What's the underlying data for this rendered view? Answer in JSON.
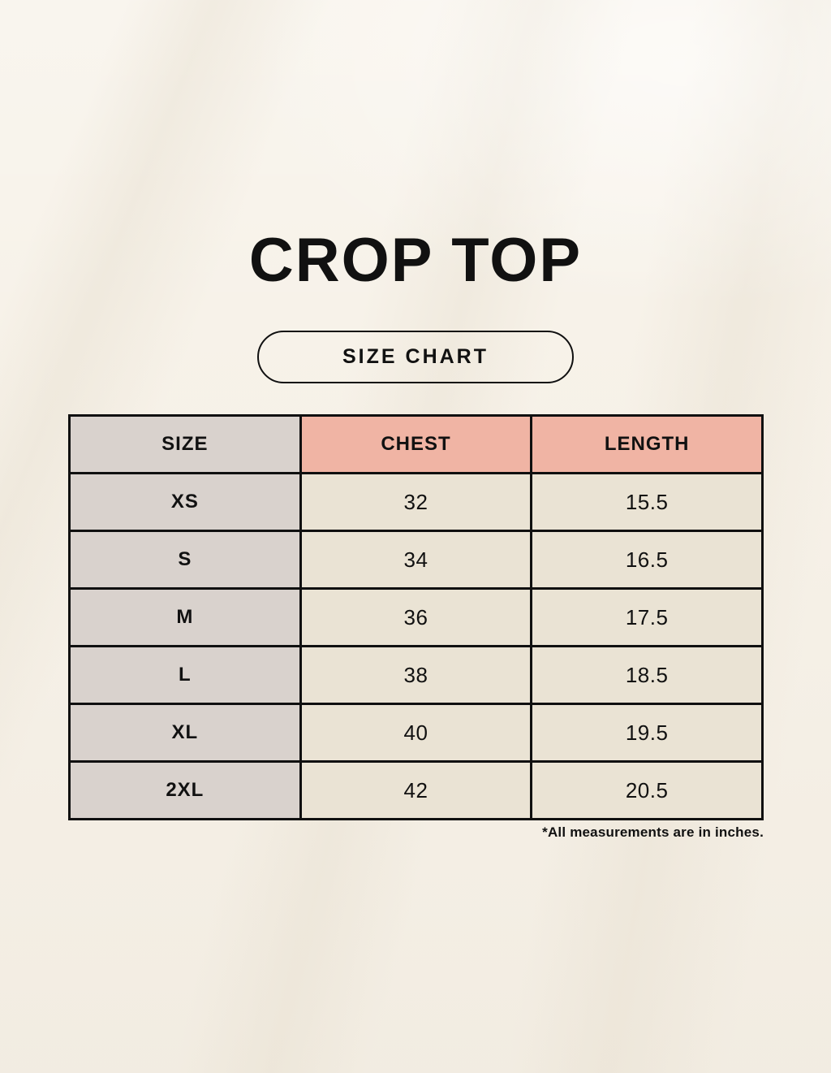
{
  "page": {
    "title": "CROP TOP",
    "size_chart_label": "SIZE CHART",
    "footnote": "*All measurements are in inches."
  },
  "table": {
    "columns": [
      "SIZE",
      "CHEST",
      "LENGTH"
    ],
    "rows": [
      {
        "size": "XS",
        "chest": "32",
        "length": "15.5"
      },
      {
        "size": "S",
        "chest": "34",
        "length": "16.5"
      },
      {
        "size": "M",
        "chest": "36",
        "length": "17.5"
      },
      {
        "size": "L",
        "chest": "38",
        "length": "18.5"
      },
      {
        "size": "XL",
        "chest": "40",
        "length": "19.5"
      },
      {
        "size": "2XL",
        "chest": "42",
        "length": "20.5"
      }
    ]
  },
  "chart_data": {
    "type": "table",
    "title": "CROP TOP SIZE CHART",
    "columns": [
      "SIZE",
      "CHEST",
      "LENGTH"
    ],
    "rows": [
      [
        "XS",
        "32",
        "15.5"
      ],
      [
        "S",
        "34",
        "16.5"
      ],
      [
        "M",
        "36",
        "17.5"
      ],
      [
        "L",
        "38",
        "18.5"
      ],
      [
        "XL",
        "40",
        "19.5"
      ],
      [
        "2XL",
        "42",
        "20.5"
      ]
    ],
    "units": "inches"
  },
  "colors": {
    "background": "#f7f2e9",
    "border": "#101010",
    "size_column_bg": "#d9d2cd",
    "accent_header_bg": "#f0b4a4",
    "cell_bg": "#eae3d4",
    "text": "#111111"
  }
}
